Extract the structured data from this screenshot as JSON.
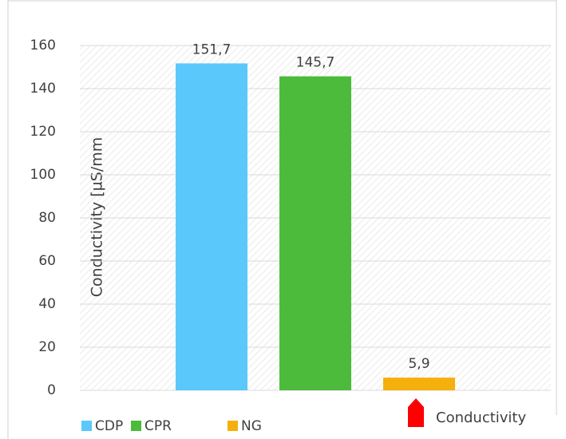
{
  "chart_data": {
    "type": "bar",
    "y_label": "Conductivity [µS/mm",
    "categories": [
      "CDP",
      "CPR",
      "NG"
    ],
    "values": [
      151.7,
      145.7,
      5.9
    ],
    "value_labels": [
      "151,7",
      "145,7",
      "5,9"
    ],
    "colors": [
      "#5bc8fb",
      "#4cbb3b",
      "#f5b00e"
    ],
    "ylim": [
      0,
      160
    ],
    "yticks": [
      0,
      20,
      40,
      60,
      80,
      100,
      120,
      140,
      160
    ],
    "grid": true,
    "legend": "bottom",
    "annotation": "Conductivity"
  }
}
